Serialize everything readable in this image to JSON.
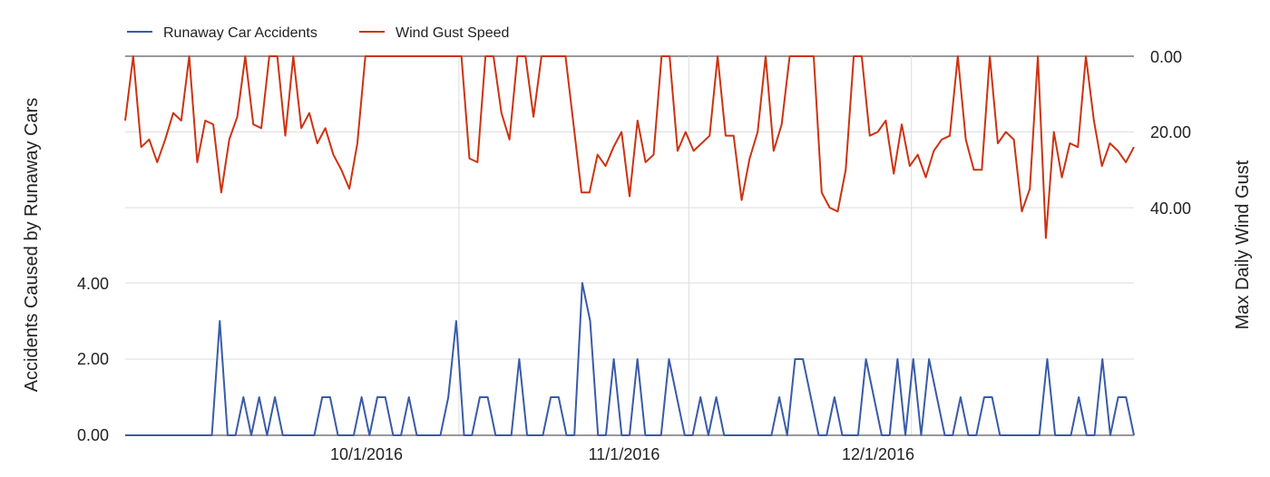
{
  "chart_data": {
    "type": "line",
    "title": "",
    "legend": {
      "position": "top-left",
      "entries": [
        {
          "name": "Runaway Car Accidents",
          "color": "#3a5ba8"
        },
        {
          "name": "Wind Gust Speed",
          "color": "#cc3311"
        }
      ]
    },
    "x": {
      "start": "2016-08-17",
      "end": "2016-12-31",
      "tick_labels": [
        "10/1/2016",
        "11/1/2016",
        "12/1/2016"
      ],
      "tick_dates": [
        "2016-10-01",
        "2016-11-01",
        "2016-12-01"
      ]
    },
    "left_axis": {
      "title": "Accidents Caused by Runaway Cars",
      "tick_labels": [
        "4.00",
        "2.00",
        "0.00"
      ],
      "tick_values": [
        4,
        2,
        0
      ],
      "range": [
        0,
        4
      ]
    },
    "right_axis": {
      "title": "Max Daily Wind Gust",
      "tick_labels": [
        "0.00",
        "20.00",
        "40.00"
      ],
      "tick_values": [
        0,
        20,
        40
      ],
      "reversed": true,
      "range": [
        0,
        40
      ]
    },
    "series": [
      {
        "name": "Runaway Car Accidents",
        "axis": "left",
        "color": "#3a5ba8",
        "values": [
          0,
          0,
          0,
          0,
          0,
          0,
          0,
          0,
          0,
          0,
          0,
          0,
          3,
          0,
          0,
          1,
          0,
          1,
          0,
          1,
          0,
          0,
          0,
          0,
          0,
          1,
          1,
          0,
          0,
          0,
          1,
          0,
          1,
          1,
          0,
          0,
          1,
          0,
          0,
          0,
          0,
          1,
          3,
          0,
          0,
          1,
          1,
          0,
          0,
          0,
          2,
          0,
          0,
          0,
          1,
          1,
          0,
          0,
          4,
          3,
          0,
          0,
          2,
          0,
          0,
          2,
          0,
          0,
          0,
          2,
          1,
          0,
          0,
          1,
          0,
          1,
          0,
          0,
          0,
          0,
          0,
          0,
          0,
          1,
          0,
          2,
          2,
          1,
          0,
          0,
          1,
          0,
          0,
          0,
          2,
          1,
          0,
          0,
          2,
          0,
          2,
          0,
          2,
          1,
          0,
          0,
          1,
          0,
          0,
          1,
          1,
          0,
          0,
          0,
          0,
          0,
          0,
          2,
          0,
          0,
          0,
          1,
          0,
          0,
          2,
          0,
          1,
          1,
          0
        ]
      },
      {
        "name": "Wind Gust Speed",
        "axis": "right",
        "color": "#cc3311",
        "values": [
          17,
          0,
          24,
          22,
          28,
          22,
          15,
          17,
          0,
          28,
          17,
          18,
          36,
          22,
          16,
          0,
          18,
          19,
          0,
          0,
          21,
          0,
          19,
          15,
          23,
          19,
          26,
          30,
          35,
          23,
          0,
          0,
          0,
          0,
          0,
          0,
          0,
          0,
          0,
          0,
          0,
          0,
          0,
          27,
          28,
          0,
          0,
          15,
          22,
          0,
          0,
          16,
          0,
          0,
          0,
          0,
          18,
          36,
          36,
          26,
          29,
          24,
          20,
          37,
          17,
          28,
          26,
          0,
          0,
          25,
          20,
          25,
          23,
          21,
          0,
          21,
          21,
          38,
          27,
          20,
          0,
          25,
          18,
          0,
          0,
          0,
          0,
          36,
          40,
          41,
          30,
          0,
          0,
          21,
          20,
          17,
          31,
          18,
          29,
          26,
          32,
          25,
          22,
          21,
          0,
          22,
          30,
          30,
          0,
          23,
          20,
          22,
          41,
          35,
          0,
          48,
          20,
          32,
          23,
          24,
          0,
          17,
          29,
          23,
          25,
          28,
          24
        ]
      }
    ],
    "grid": true
  }
}
